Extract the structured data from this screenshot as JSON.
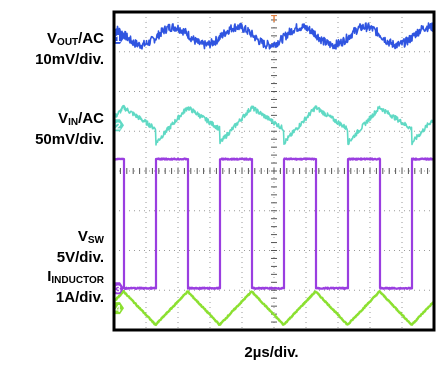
{
  "chart_data": {
    "type": "line",
    "title": "",
    "xlabel": "2µs/div.",
    "x_divisions": 10,
    "y_divisions": 8,
    "grid": true,
    "trigger_marker": "T",
    "series": [
      {
        "name": "VOUT/AC",
        "label_main": "V",
        "label_sub": "OUT",
        "label_suffix": "/AC",
        "scale": "10mV/div.",
        "color": "#2f54e0",
        "marker": "1",
        "baseline_div": 7.35,
        "waveform": "ripple",
        "period_us": 4.0,
        "amplitude_div": 0.32
      },
      {
        "name": "VIN/AC",
        "label_main": "V",
        "label_sub": "IN",
        "label_suffix": "/AC",
        "scale": "50mV/div.",
        "color": "#5fd9c4",
        "marker": "2",
        "baseline_div": 5.15,
        "waveform": "sawtooth",
        "period_us": 4.0,
        "amplitude_div": 0.45
      },
      {
        "name": "VSW",
        "label_main": "V",
        "label_sub": "SW",
        "label_suffix": "",
        "scale": "5V/div.",
        "color": "#9a3ee0",
        "marker": "3",
        "high_div": 4.3,
        "low_div": 1.05,
        "waveform": "square",
        "period_us": 4.0,
        "duty": 0.5
      },
      {
        "name": "IINDUCTOR",
        "label_main": "I",
        "label_sub": "INDUCTOR",
        "label_suffix": "",
        "scale": "1A/div.",
        "color": "#8be030",
        "marker": "4",
        "baseline_div": 0.55,
        "waveform": "triangle",
        "period_us": 4.0,
        "amplitude_div": 0.42
      }
    ]
  }
}
